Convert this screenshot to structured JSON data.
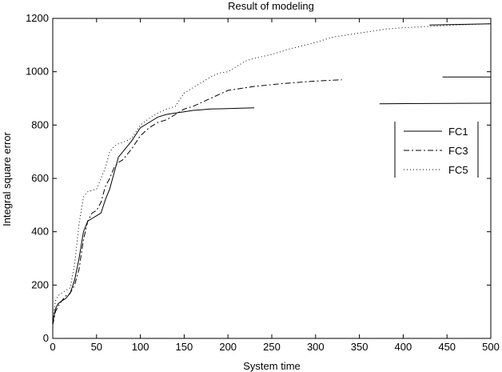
{
  "chart_data": {
    "type": "line",
    "title": "Result of modeling",
    "xlabel": "System time",
    "ylabel": "Integral square error",
    "xlim": [
      0,
      500
    ],
    "ylim": [
      0,
      1200
    ],
    "xticks": [
      0,
      50,
      100,
      150,
      200,
      250,
      300,
      350,
      400,
      450,
      500
    ],
    "yticks": [
      0,
      200,
      400,
      600,
      800,
      1000,
      1200
    ],
    "grid": false,
    "legend_position": "right",
    "series": [
      {
        "name": "FC1",
        "dash": "solid",
        "x": [
          0,
          3,
          6,
          10,
          15,
          20,
          25,
          30,
          35,
          40,
          45,
          50,
          55,
          60,
          65,
          70,
          75,
          80,
          90,
          100,
          110,
          120,
          130,
          140,
          150,
          160,
          180,
          200,
          230
        ],
        "y": [
          60,
          110,
          130,
          140,
          150,
          170,
          220,
          300,
          400,
          440,
          450,
          460,
          470,
          520,
          560,
          620,
          680,
          700,
          740,
          790,
          810,
          830,
          840,
          845,
          850,
          855,
          860,
          862,
          865
        ]
      },
      {
        "name": "FC3",
        "dash": "dashdot",
        "x": [
          0,
          3,
          6,
          10,
          15,
          20,
          25,
          30,
          35,
          40,
          45,
          50,
          55,
          60,
          65,
          70,
          75,
          80,
          90,
          100,
          110,
          120,
          130,
          140,
          150,
          160,
          180,
          200,
          230,
          260,
          300,
          330
        ],
        "y": [
          50,
          100,
          120,
          140,
          160,
          170,
          200,
          260,
          370,
          440,
          470,
          480,
          510,
          570,
          600,
          640,
          660,
          670,
          710,
          760,
          790,
          810,
          820,
          840,
          860,
          870,
          900,
          930,
          945,
          955,
          965,
          970
        ]
      },
      {
        "name": "FC5",
        "dash": "dotted",
        "x": [
          0,
          3,
          6,
          10,
          15,
          20,
          25,
          30,
          35,
          40,
          45,
          50,
          55,
          60,
          65,
          70,
          75,
          80,
          90,
          100,
          110,
          120,
          130,
          140,
          150,
          160,
          170,
          180,
          190,
          200,
          210,
          220,
          230,
          250,
          270,
          300,
          320,
          340,
          360,
          380,
          400,
          430,
          460,
          500
        ],
        "y": [
          70,
          140,
          160,
          170,
          180,
          190,
          280,
          430,
          530,
          550,
          555,
          560,
          600,
          640,
          700,
          720,
          730,
          735,
          750,
          800,
          825,
          845,
          860,
          870,
          920,
          940,
          960,
          980,
          995,
          1000,
          1020,
          1040,
          1050,
          1065,
          1085,
          1110,
          1130,
          1140,
          1150,
          1160,
          1165,
          1170,
          1175,
          1180
        ]
      }
    ],
    "extra_segments": [
      {
        "x": [
          373,
          500
        ],
        "y": [
          880,
          882
        ]
      },
      {
        "x": [
          445,
          500
        ],
        "y": [
          980,
          980
        ]
      },
      {
        "x": [
          430,
          500
        ],
        "y": [
          1175,
          1180
        ]
      }
    ]
  }
}
